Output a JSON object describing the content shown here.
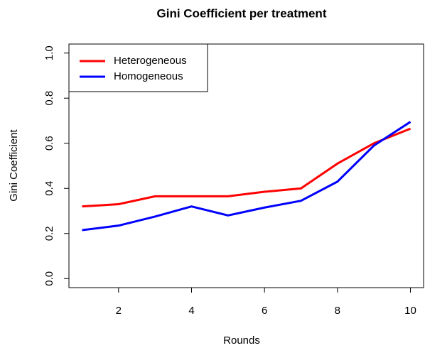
{
  "chart_data": {
    "type": "line",
    "title": "Gini Coefficient per treatment",
    "x_label": "Rounds",
    "y_label": "Gini Coefficient",
    "x": [
      1,
      2,
      3,
      4,
      5,
      6,
      7,
      8,
      9,
      10
    ],
    "series": [
      {
        "name": "Heterogeneous",
        "color": "#ff0000",
        "values": [
          0.32,
          0.33,
          0.365,
          0.365,
          0.365,
          0.385,
          0.4,
          0.51,
          0.6,
          0.665
        ]
      },
      {
        "name": "Homogeneous",
        "color": "#0000ff",
        "values": [
          0.215,
          0.235,
          0.275,
          0.32,
          0.28,
          0.315,
          0.345,
          0.43,
          0.59,
          0.695
        ]
      }
    ],
    "xlim": [
      0.64,
      10.36
    ],
    "xticks": [
      2,
      4,
      6,
      8,
      10
    ],
    "ylim": [
      -0.04,
      1.04
    ],
    "yticks": [
      {
        "value": 0,
        "label": "0.0"
      },
      0.2,
      0.4,
      0.6,
      0.8,
      {
        "value": 1,
        "label": "1.0"
      }
    ],
    "legend": "topleft"
  }
}
